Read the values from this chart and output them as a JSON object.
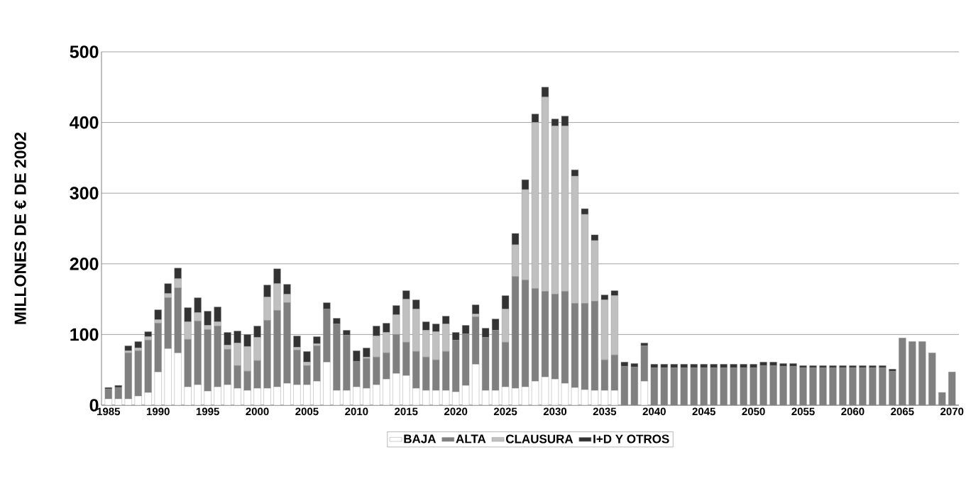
{
  "chart_data": {
    "type": "bar",
    "stacked": true,
    "ylabel": "MILLONES DE € DE 2002",
    "x": [
      1985,
      1986,
      1987,
      1988,
      1989,
      1990,
      1991,
      1992,
      1993,
      1994,
      1995,
      1996,
      1997,
      1998,
      1999,
      2000,
      2001,
      2002,
      2003,
      2004,
      2005,
      2006,
      2007,
      2008,
      2009,
      2010,
      2011,
      2012,
      2013,
      2014,
      2015,
      2016,
      2017,
      2018,
      2019,
      2020,
      2021,
      2022,
      2023,
      2024,
      2025,
      2026,
      2027,
      2028,
      2029,
      2030,
      2031,
      2032,
      2033,
      2034,
      2035,
      2036,
      2037,
      2038,
      2039,
      2040,
      2041,
      2042,
      2043,
      2044,
      2045,
      2046,
      2047,
      2048,
      2049,
      2050,
      2051,
      2052,
      2053,
      2054,
      2055,
      2056,
      2057,
      2058,
      2059,
      2060,
      2061,
      2062,
      2063,
      2064,
      2065,
      2066,
      2067,
      2068,
      2069,
      2070
    ],
    "series": [
      {
        "name": "BAJA",
        "color": "#ffffff",
        "values": [
          9,
          9,
          9,
          13,
          18,
          47,
          80,
          74,
          26,
          29,
          20,
          26,
          29,
          24,
          21,
          24,
          24,
          26,
          31,
          29,
          29,
          34,
          61,
          21,
          21,
          26,
          24,
          29,
          37,
          45,
          42,
          24,
          21,
          21,
          21,
          19,
          28,
          58,
          21,
          21,
          26,
          24,
          26,
          34,
          40,
          37,
          31,
          25,
          22,
          21,
          21,
          21,
          0,
          0,
          34,
          0,
          0,
          0,
          0,
          0,
          0,
          0,
          0,
          0,
          0,
          0,
          0,
          0,
          0,
          0,
          0,
          0,
          0,
          0,
          0,
          0,
          0,
          0,
          0,
          0,
          0,
          0,
          0,
          0,
          0,
          0
        ]
      },
      {
        "name": "ALTA",
        "color": "#808080",
        "values": [
          14,
          16,
          65,
          64,
          74,
          69,
          72,
          92,
          67,
          90,
          87,
          86,
          50,
          32,
          27,
          39,
          96,
          108,
          114,
          49,
          27,
          50,
          75,
          94,
          78,
          36,
          42,
          39,
          37,
          55,
          47,
          52,
          47,
          43,
          55,
          73,
          73,
          67,
          75,
          85,
          63,
          158,
          151,
          131,
          121,
          120,
          130,
          119,
          122,
          126,
          43,
          50,
          55,
          54,
          50,
          53,
          53,
          53,
          53,
          53,
          53,
          53,
          53,
          53,
          53,
          53,
          56,
          56,
          55,
          55,
          53,
          53,
          53,
          53,
          53,
          53,
          53,
          53,
          53,
          48,
          95,
          90,
          90,
          74,
          18,
          47
        ]
      },
      {
        "name": "CLAUSURA",
        "color": "#c0c0c0",
        "values": [
          0,
          0,
          3,
          4,
          5,
          5,
          6,
          13,
          25,
          12,
          6,
          6,
          6,
          32,
          35,
          33,
          33,
          38,
          12,
          4,
          5,
          3,
          0,
          0,
          0,
          0,
          2,
          30,
          29,
          28,
          61,
          60,
          38,
          40,
          39,
          0,
          0,
          4,
          0,
          0,
          47,
          45,
          128,
          235,
          275,
          238,
          234,
          180,
          126,
          86,
          85,
          84,
          0,
          0,
          0,
          0,
          0,
          0,
          0,
          0,
          0,
          0,
          0,
          0,
          0,
          0,
          0,
          0,
          0,
          0,
          0,
          0,
          0,
          0,
          0,
          0,
          0,
          0,
          0,
          0,
          0,
          0,
          0,
          0,
          0,
          0
        ]
      },
      {
        "name": "I+D Y OTROS",
        "color": "#333333",
        "values": [
          2,
          3,
          7,
          9,
          7,
          14,
          14,
          15,
          20,
          21,
          20,
          21,
          18,
          17,
          17,
          16,
          17,
          21,
          14,
          16,
          15,
          10,
          9,
          8,
          7,
          15,
          13,
          14,
          13,
          13,
          12,
          13,
          12,
          11,
          11,
          11,
          12,
          13,
          13,
          16,
          19,
          16,
          14,
          12,
          14,
          10,
          14,
          9,
          8,
          8,
          7,
          7,
          6,
          5,
          4,
          5,
          5,
          5,
          5,
          5,
          5,
          5,
          5,
          5,
          5,
          5,
          5,
          5,
          4,
          4,
          3,
          3,
          3,
          3,
          3,
          3,
          3,
          3,
          3,
          3,
          0,
          0,
          0,
          0,
          0,
          0
        ]
      }
    ],
    "xlim": [
      1984.3,
      2070.7
    ],
    "ylim": [
      0,
      500
    ],
    "xticks": [
      1985,
      1990,
      1995,
      2000,
      2005,
      2010,
      2015,
      2020,
      2025,
      2030,
      2035,
      2040,
      2045,
      2050,
      2055,
      2060,
      2065,
      2070
    ],
    "yticks": [
      0,
      100,
      200,
      300,
      400,
      500
    ],
    "grid": "y",
    "legend": "bottom"
  }
}
